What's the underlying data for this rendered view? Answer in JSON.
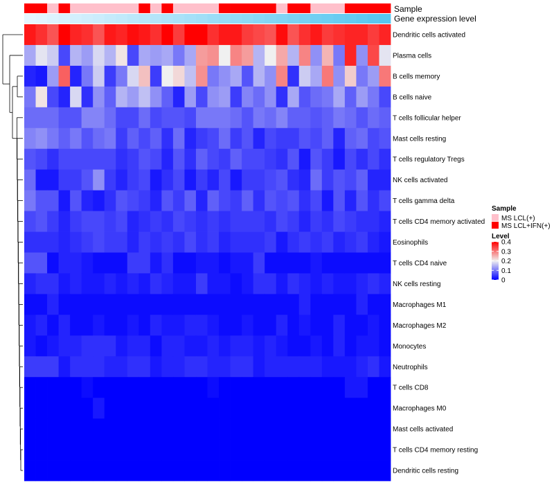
{
  "chart_data": {
    "type": "heatmap",
    "rows": [
      "Dendritic cells activated",
      "Plasma cells",
      "B cells memory",
      "B cells naive",
      "T cells follicular helper",
      "Mast cells resting",
      "T cells regulatory  Tregs",
      "NK cells activated",
      "T cells gamma delta",
      "T cells CD4 memory activated",
      "Eosinophils",
      "T cells CD4 naive",
      "NK cells resting",
      "Macrophages M1",
      "Macrophages M2",
      "Monocytes",
      "Neutrophils",
      "T cells CD8",
      "Macrophages M0",
      "Mast cells activated",
      "T cells CD4 memory resting",
      "Dendritic cells resting"
    ],
    "sample_groups": [
      "MS LCL+IFN(+)",
      "MS LCL+IFN(+)",
      "MS LCL(+)",
      "MS LCL+IFN(+)",
      "MS LCL(+)",
      "MS LCL(+)",
      "MS LCL(+)",
      "MS LCL(+)",
      "MS LCL(+)",
      "MS LCL(+)",
      "MS LCL+IFN(+)",
      "MS LCL(+)",
      "MS LCL+IFN(+)",
      "MS LCL(+)",
      "MS LCL(+)",
      "MS LCL(+)",
      "MS LCL(+)",
      "MS LCL+IFN(+)",
      "MS LCL+IFN(+)",
      "MS LCL+IFN(+)",
      "MS LCL+IFN(+)",
      "MS LCL+IFN(+)",
      "MS LCL(+)",
      "MS LCL+IFN(+)",
      "MS LCL+IFN(+)",
      "MS LCL(+)",
      "MS LCL(+)",
      "MS LCL(+)",
      "MS LCL+IFN(+)",
      "MS LCL+IFN(+)",
      "MS LCL+IFN(+)",
      "MS LCL+IFN(+)"
    ],
    "gene_expression_level": [
      0.0,
      0.03,
      0.06,
      0.1,
      0.13,
      0.16,
      0.19,
      0.23,
      0.26,
      0.29,
      0.32,
      0.35,
      0.39,
      0.42,
      0.45,
      0.48,
      0.52,
      0.55,
      0.58,
      0.61,
      0.65,
      0.68,
      0.71,
      0.74,
      0.77,
      0.81,
      0.84,
      0.87,
      0.9,
      0.94,
      0.97,
      1.0
    ],
    "values": [
      [
        0.38,
        0.36,
        0.33,
        0.4,
        0.37,
        0.36,
        0.33,
        0.38,
        0.37,
        0.39,
        0.38,
        0.36,
        0.4,
        0.35,
        0.4,
        0.4,
        0.36,
        0.38,
        0.38,
        0.35,
        0.34,
        0.33,
        0.39,
        0.33,
        0.36,
        0.38,
        0.35,
        0.36,
        0.37,
        0.37,
        0.35,
        0.37
      ],
      [
        0.14,
        0.19,
        0.17,
        0.06,
        0.15,
        0.13,
        0.18,
        0.15,
        0.21,
        0.06,
        0.14,
        0.13,
        0.14,
        0.1,
        0.14,
        0.27,
        0.28,
        0.2,
        0.29,
        0.27,
        0.15,
        0.2,
        0.26,
        0.15,
        0.29,
        0.12,
        0.25,
        0.1,
        0.37,
        0.12,
        0.34,
        0.19
      ],
      [
        0.03,
        0.02,
        0.13,
        0.32,
        0.03,
        0.1,
        0.17,
        0.05,
        0.1,
        0.18,
        0.24,
        0.05,
        0.2,
        0.22,
        0.16,
        0.28,
        0.1,
        0.12,
        0.14,
        0.07,
        0.15,
        0.12,
        0.29,
        0.04,
        0.17,
        0.14,
        0.3,
        0.12,
        0.23,
        0.1,
        0.13,
        0.3
      ],
      [
        0.1,
        0.21,
        0.06,
        0.03,
        0.18,
        0.04,
        0.12,
        0.08,
        0.15,
        0.13,
        0.16,
        0.12,
        0.08,
        0.03,
        0.13,
        0.06,
        0.12,
        0.13,
        0.05,
        0.11,
        0.09,
        0.12,
        0.04,
        0.14,
        0.07,
        0.09,
        0.1,
        0.14,
        0.08,
        0.13,
        0.1,
        0.06
      ],
      [
        0.09,
        0.09,
        0.09,
        0.07,
        0.07,
        0.11,
        0.11,
        0.09,
        0.06,
        0.06,
        0.09,
        0.06,
        0.07,
        0.07,
        0.06,
        0.1,
        0.1,
        0.1,
        0.09,
        0.07,
        0.1,
        0.09,
        0.11,
        0.08,
        0.08,
        0.07,
        0.08,
        0.1,
        0.09,
        0.07,
        0.09,
        0.08
      ],
      [
        0.11,
        0.12,
        0.1,
        0.08,
        0.1,
        0.07,
        0.09,
        0.1,
        0.05,
        0.08,
        0.06,
        0.08,
        0.04,
        0.09,
        0.03,
        0.05,
        0.06,
        0.09,
        0.05,
        0.07,
        0.03,
        0.06,
        0.05,
        0.05,
        0.07,
        0.06,
        0.08,
        0.03,
        0.08,
        0.09,
        0.06,
        0.07
      ],
      [
        0.07,
        0.06,
        0.04,
        0.06,
        0.06,
        0.06,
        0.06,
        0.06,
        0.04,
        0.05,
        0.07,
        0.06,
        0.03,
        0.07,
        0.04,
        0.08,
        0.06,
        0.05,
        0.08,
        0.06,
        0.06,
        0.05,
        0.04,
        0.07,
        0.02,
        0.07,
        0.05,
        0.02,
        0.06,
        0.04,
        0.06,
        0.04
      ],
      [
        0.09,
        0.02,
        0.02,
        0.05,
        0.05,
        0.07,
        0.12,
        0.05,
        0.03,
        0.05,
        0.06,
        0.02,
        0.04,
        0.06,
        0.02,
        0.05,
        0.03,
        0.06,
        0.02,
        0.05,
        0.05,
        0.06,
        0.07,
        0.04,
        0.03,
        0.09,
        0.05,
        0.07,
        0.06,
        0.08,
        0.03,
        0.03
      ],
      [
        0.1,
        0.07,
        0.07,
        0.02,
        0.07,
        0.03,
        0.02,
        0.04,
        0.07,
        0.06,
        0.05,
        0.03,
        0.07,
        0.05,
        0.08,
        0.03,
        0.08,
        0.06,
        0.05,
        0.08,
        0.04,
        0.07,
        0.06,
        0.07,
        0.04,
        0.06,
        0.02,
        0.07,
        0.03,
        0.07,
        0.04,
        0.06
      ],
      [
        0.06,
        0.07,
        0.05,
        0.03,
        0.05,
        0.06,
        0.06,
        0.05,
        0.06,
        0.03,
        0.04,
        0.05,
        0.04,
        0.06,
        0.05,
        0.04,
        0.05,
        0.04,
        0.05,
        0.05,
        0.05,
        0.04,
        0.06,
        0.05,
        0.03,
        0.05,
        0.04,
        0.06,
        0.05,
        0.04,
        0.04,
        0.03
      ],
      [
        0.04,
        0.04,
        0.04,
        0.03,
        0.04,
        0.05,
        0.06,
        0.05,
        0.05,
        0.03,
        0.05,
        0.04,
        0.05,
        0.04,
        0.06,
        0.04,
        0.05,
        0.03,
        0.04,
        0.04,
        0.04,
        0.05,
        0.02,
        0.04,
        0.05,
        0.04,
        0.05,
        0.03,
        0.04,
        0.05,
        0.03,
        0.02
      ],
      [
        0.07,
        0.07,
        0.01,
        0.03,
        0.03,
        0.02,
        0.01,
        0.01,
        0.01,
        0.05,
        0.05,
        0.02,
        0.04,
        0.01,
        0.01,
        0.02,
        0.02,
        0.01,
        0.02,
        0.02,
        0.05,
        0.01,
        0.01,
        0.01,
        0.01,
        0.02,
        0.01,
        0.01,
        0.01,
        0.01,
        0.01,
        0.01
      ],
      [
        0.03,
        0.04,
        0.04,
        0.02,
        0.03,
        0.02,
        0.02,
        0.03,
        0.02,
        0.03,
        0.02,
        0.04,
        0.03,
        0.02,
        0.02,
        0.05,
        0.02,
        0.02,
        0.01,
        0.02,
        0.04,
        0.04,
        0.02,
        0.04,
        0.03,
        0.02,
        0.03,
        0.02,
        0.02,
        0.03,
        0.04,
        0.03
      ],
      [
        0.01,
        0.01,
        0.03,
        0.01,
        0.01,
        0.01,
        0.01,
        0.01,
        0.01,
        0.01,
        0.01,
        0.01,
        0.01,
        0.01,
        0.01,
        0.01,
        0.01,
        0.01,
        0.01,
        0.01,
        0.01,
        0.01,
        0.01,
        0.01,
        0.03,
        0.01,
        0.01,
        0.01,
        0.01,
        0.03,
        0.01,
        0.01
      ],
      [
        0.02,
        0.03,
        0.01,
        0.03,
        0.01,
        0.01,
        0.02,
        0.01,
        0.01,
        0.02,
        0.01,
        0.03,
        0.02,
        0.02,
        0.03,
        0.03,
        0.02,
        0.01,
        0.01,
        0.02,
        0.01,
        0.01,
        0.03,
        0.01,
        0.02,
        0.01,
        0.01,
        0.03,
        0.01,
        0.01,
        0.02,
        0.01
      ],
      [
        0.02,
        0.01,
        0.02,
        0.03,
        0.03,
        0.04,
        0.04,
        0.04,
        0.02,
        0.03,
        0.03,
        0.01,
        0.03,
        0.03,
        0.02,
        0.02,
        0.03,
        0.02,
        0.03,
        0.03,
        0.02,
        0.03,
        0.02,
        0.01,
        0.01,
        0.02,
        0.01,
        0.03,
        0.01,
        0.02,
        0.02,
        0.01
      ],
      [
        0.05,
        0.05,
        0.05,
        0.02,
        0.04,
        0.04,
        0.04,
        0.03,
        0.03,
        0.04,
        0.04,
        0.02,
        0.03,
        0.03,
        0.04,
        0.04,
        0.03,
        0.03,
        0.04,
        0.04,
        0.02,
        0.03,
        0.03,
        0.03,
        0.03,
        0.03,
        0.02,
        0.02,
        0.02,
        0.03,
        0.04,
        0.02
      ],
      [
        0.0,
        0.0,
        0.0,
        0.0,
        0.0,
        0.01,
        0.0,
        0.0,
        0.0,
        0.0,
        0.0,
        0.0,
        0.0,
        0.0,
        0.0,
        0.0,
        0.01,
        0.0,
        0.0,
        0.0,
        0.0,
        0.0,
        0.0,
        0.0,
        0.0,
        0.0,
        0.0,
        0.0,
        0.02,
        0.02,
        0.0,
        0.0
      ],
      [
        0.0,
        0.0,
        0.0,
        0.0,
        0.0,
        0.0,
        0.02,
        0.0,
        0.0,
        0.0,
        0.0,
        0.0,
        0.0,
        0.0,
        0.0,
        0.0,
        0.0,
        0.0,
        0.0,
        0.0,
        0.0,
        0.0,
        0.0,
        0.0,
        0.0,
        0.0,
        0.0,
        0.0,
        0.0,
        0.0,
        0.0,
        0.0
      ],
      [
        0.0,
        0.0,
        0.0,
        0.0,
        0.0,
        0.0,
        0.0,
        0.0,
        0.0,
        0.0,
        0.0,
        0.0,
        0.0,
        0.0,
        0.0,
        0.0,
        0.0,
        0.0,
        0.0,
        0.0,
        0.0,
        0.0,
        0.0,
        0.0,
        0.0,
        0.0,
        0.0,
        0.0,
        0.0,
        0.0,
        0.0,
        0.0
      ],
      [
        0.0,
        0.0,
        0.0,
        0.0,
        0.0,
        0.0,
        0.0,
        0.0,
        0.0,
        0.0,
        0.0,
        0.0,
        0.0,
        0.0,
        0.0,
        0.0,
        0.0,
        0.0,
        0.0,
        0.0,
        0.0,
        0.0,
        0.0,
        0.0,
        0.0,
        0.0,
        0.0,
        0.0,
        0.0,
        0.0,
        0.0,
        0.0
      ],
      [
        0.0,
        0.0,
        0.0,
        0.0,
        0.0,
        0.0,
        0.0,
        0.0,
        0.0,
        0.0,
        0.0,
        0.0,
        0.0,
        0.0,
        0.0,
        0.0,
        0.0,
        0.0,
        0.0,
        0.0,
        0.0,
        0.0,
        0.0,
        0.0,
        0.0,
        0.0,
        0.0,
        0.0,
        0.0,
        0.0,
        0.0,
        0.0
      ]
    ],
    "annotation_tracks": [
      "Sample",
      "Gene expression level"
    ],
    "legend": {
      "sample_title": "Sample",
      "sample_entries": [
        {
          "label": "MS LCL(+)",
          "color": "#FFC0CB"
        },
        {
          "label": "MS LCL+IFN(+)",
          "color": "#FF0000"
        }
      ],
      "level_title": "Level",
      "level_ticks": [
        {
          "label": "0.4",
          "value": 0.4
        },
        {
          "label": "0.3",
          "value": 0.3
        },
        {
          "label": "0.2",
          "value": 0.2
        },
        {
          "label": "0.1",
          "value": 0.1
        },
        {
          "label": "0",
          "value": 0
        }
      ],
      "level_range": [
        0,
        0.4
      ]
    },
    "colors": {
      "low": "#0000FF",
      "mid": "#F0F0F0",
      "high": "#FF0000",
      "expression_low": "#E6F6FF",
      "expression_high": "#56C6EF"
    }
  }
}
